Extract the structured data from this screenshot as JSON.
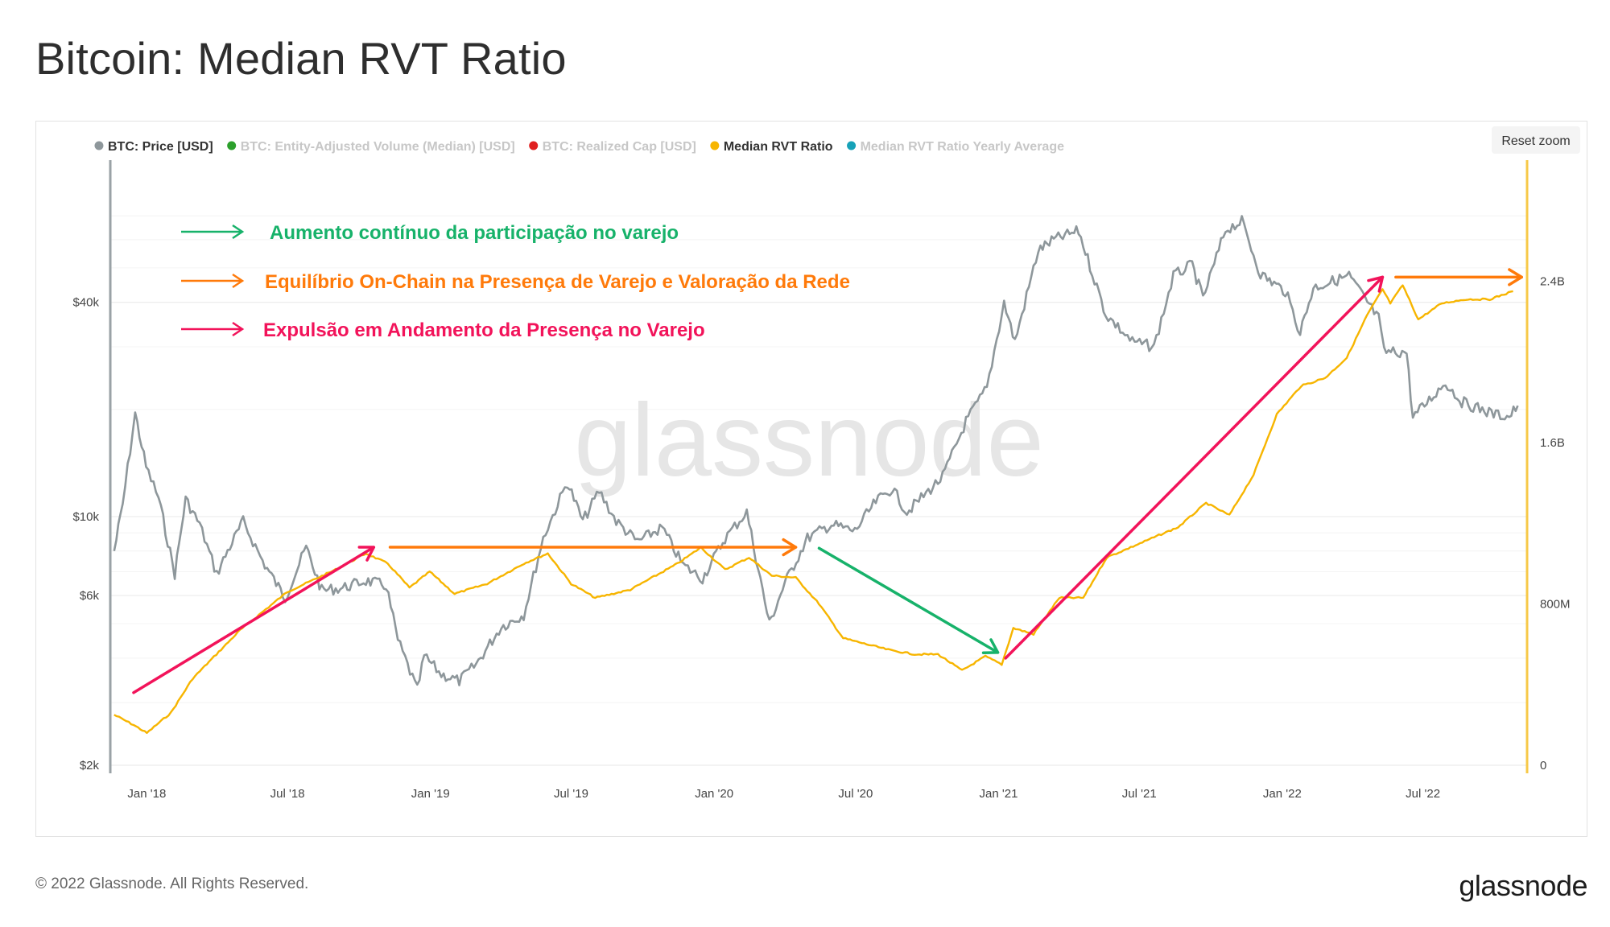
{
  "page": {
    "title": "Bitcoin: Median RVT Ratio",
    "footer_copyright": "© 2022 Glassnode. All Rights Reserved.",
    "footer_logo": "glassnode",
    "watermark": "glassnode"
  },
  "toolbar": {
    "reset_zoom_label": "Reset zoom"
  },
  "legend": [
    {
      "label": "BTC: Price [USD]",
      "color": "#8e979b",
      "active": true
    },
    {
      "label": "BTC: Entity-Adjusted Volume (Median) [USD]",
      "color": "#2ca02c",
      "active": false
    },
    {
      "label": "BTC: Realized Cap [USD]",
      "color": "#e02020",
      "active": false
    },
    {
      "label": "Median RVT Ratio",
      "color": "#f7b500",
      "active": true
    },
    {
      "label": "Median RVT Ratio Yearly Average",
      "color": "#17a2b8",
      "active": false
    }
  ],
  "annotations": {
    "green": {
      "text": "Aumento contínuo da participação no varejo",
      "color": "#17b26a"
    },
    "orange": {
      "text": "Equilíbrio On-Chain na Presença de Varejo e Valoração da Rede",
      "color": "#ff7a0a"
    },
    "pink": {
      "text": "Expulsão em Andamento da Presença no Varejo",
      "color": "#f2135a"
    }
  },
  "chart_data": {
    "type": "line",
    "x_ticks": [
      "Jan '18",
      "Jul '18",
      "Jan '19",
      "Jul '19",
      "Jan '20",
      "Jul '20",
      "Jan '21",
      "Jul '21",
      "Jan '22",
      "Jul '22"
    ],
    "y_left": {
      "scale": "log",
      "ticks": [
        "$2k",
        "$6k",
        "$10k",
        "$40k"
      ],
      "tick_values": [
        2000,
        6000,
        10000,
        40000
      ]
    },
    "y_right": {
      "scale": "linear",
      "ticks": [
        "0",
        "800M",
        "1.6B",
        "2.4B"
      ],
      "tick_values": [
        0,
        800000000,
        1600000000,
        2400000000
      ]
    },
    "series": [
      {
        "name": "BTC: Price [USD]",
        "axis": "left",
        "color": "#8e979b",
        "points": [
          [
            "2017-11-20",
            8000
          ],
          [
            "2017-12-01",
            10800
          ],
          [
            "2017-12-17",
            19500
          ],
          [
            "2017-12-31",
            13800
          ],
          [
            "2018-01-16",
            11300
          ],
          [
            "2018-02-06",
            6900
          ],
          [
            "2018-02-20",
            11200
          ],
          [
            "2018-03-10",
            9500
          ],
          [
            "2018-04-01",
            6900
          ],
          [
            "2018-04-15",
            8000
          ],
          [
            "2018-05-05",
            9700
          ],
          [
            "2018-05-30",
            7500
          ],
          [
            "2018-06-28",
            5900
          ],
          [
            "2018-07-25",
            8200
          ],
          [
            "2018-08-14",
            6200
          ],
          [
            "2018-09-10",
            6300
          ],
          [
            "2018-10-10",
            6600
          ],
          [
            "2018-11-05",
            6400
          ],
          [
            "2018-11-20",
            4500
          ],
          [
            "2018-12-15",
            3250
          ],
          [
            "2018-12-24",
            4050
          ],
          [
            "2019-01-15",
            3600
          ],
          [
            "2019-02-07",
            3450
          ],
          [
            "2019-03-01",
            3850
          ],
          [
            "2019-04-02",
            4900
          ],
          [
            "2019-05-01",
            5300
          ],
          [
            "2019-05-26",
            8700
          ],
          [
            "2019-06-26",
            12500
          ],
          [
            "2019-07-16",
            9700
          ],
          [
            "2019-08-06",
            11800
          ],
          [
            "2019-08-28",
            9700
          ],
          [
            "2019-09-24",
            8500
          ],
          [
            "2019-10-26",
            9300
          ],
          [
            "2019-11-22",
            7300
          ],
          [
            "2019-12-17",
            6700
          ],
          [
            "2020-01-15",
            8700
          ],
          [
            "2020-02-12",
            10300
          ],
          [
            "2020-03-12",
            5000
          ],
          [
            "2020-04-01",
            6500
          ],
          [
            "2020-04-30",
            8700
          ],
          [
            "2020-05-31",
            9500
          ],
          [
            "2020-06-30",
            9100
          ],
          [
            "2020-07-27",
            11000
          ],
          [
            "2020-08-17",
            12000
          ],
          [
            "2020-09-05",
            10300
          ],
          [
            "2020-10-21",
            12900
          ],
          [
            "2020-11-20",
            18500
          ],
          [
            "2020-12-17",
            23000
          ],
          [
            "2021-01-08",
            40000
          ],
          [
            "2021-01-22",
            31000
          ],
          [
            "2021-02-21",
            56000
          ],
          [
            "2021-03-13",
            60000
          ],
          [
            "2021-04-14",
            63500
          ],
          [
            "2021-05-19",
            37000
          ],
          [
            "2021-06-22",
            31000
          ],
          [
            "2021-07-20",
            30000
          ],
          [
            "2021-08-14",
            47500
          ],
          [
            "2021-09-07",
            51000
          ],
          [
            "2021-09-21",
            41000
          ],
          [
            "2021-10-20",
            64000
          ],
          [
            "2021-11-10",
            67500
          ],
          [
            "2021-12-04",
            48000
          ],
          [
            "2022-01-05",
            43000
          ],
          [
            "2022-01-24",
            33000
          ],
          [
            "2022-02-10",
            44000
          ],
          [
            "2022-03-28",
            47500
          ],
          [
            "2022-05-05",
            36000
          ],
          [
            "2022-05-12",
            29000
          ],
          [
            "2022-06-10",
            29000
          ],
          [
            "2022-06-18",
            19000
          ],
          [
            "2022-07-30",
            23800
          ],
          [
            "2022-08-20",
            21000
          ],
          [
            "2022-09-30",
            19400
          ],
          [
            "2022-10-20",
            19100
          ],
          [
            "2022-10-31",
            20500
          ]
        ]
      },
      {
        "name": "Median RVT Ratio",
        "axis": "right",
        "color": "#f7b500",
        "points": [
          [
            "2017-11-20",
            250000000
          ],
          [
            "2017-12-15",
            200000000
          ],
          [
            "2018-01-01",
            160000000
          ],
          [
            "2018-02-01",
            260000000
          ],
          [
            "2018-03-01",
            430000000
          ],
          [
            "2018-05-01",
            670000000
          ],
          [
            "2018-07-01",
            860000000
          ],
          [
            "2018-09-01",
            970000000
          ],
          [
            "2018-10-10",
            1050000000
          ],
          [
            "2018-11-07",
            1000000000
          ],
          [
            "2018-12-05",
            880000000
          ],
          [
            "2018-12-31",
            960000000
          ],
          [
            "2019-02-01",
            850000000
          ],
          [
            "2019-03-15",
            900000000
          ],
          [
            "2019-05-01",
            1000000000
          ],
          [
            "2019-06-01",
            1050000000
          ],
          [
            "2019-07-01",
            900000000
          ],
          [
            "2019-08-01",
            830000000
          ],
          [
            "2019-09-15",
            870000000
          ],
          [
            "2019-11-15",
            1000000000
          ],
          [
            "2019-12-15",
            1080000000
          ],
          [
            "2020-01-15",
            970000000
          ],
          [
            "2020-02-15",
            1030000000
          ],
          [
            "2020-03-15",
            940000000
          ],
          [
            "2020-04-15",
            930000000
          ],
          [
            "2020-05-15",
            800000000
          ],
          [
            "2020-06-15",
            630000000
          ],
          [
            "2020-07-15",
            600000000
          ],
          [
            "2020-08-15",
            570000000
          ],
          [
            "2020-09-15",
            550000000
          ],
          [
            "2020-10-15",
            550000000
          ],
          [
            "2020-11-15",
            470000000
          ],
          [
            "2020-12-15",
            540000000
          ],
          [
            "2021-01-05",
            500000000
          ],
          [
            "2021-01-20",
            680000000
          ],
          [
            "2021-02-15",
            650000000
          ],
          [
            "2021-03-20",
            830000000
          ],
          [
            "2021-04-20",
            830000000
          ],
          [
            "2021-05-20",
            1030000000
          ],
          [
            "2021-06-20",
            1080000000
          ],
          [
            "2021-07-20",
            1130000000
          ],
          [
            "2021-08-20",
            1180000000
          ],
          [
            "2021-09-25",
            1300000000
          ],
          [
            "2021-10-25",
            1240000000
          ],
          [
            "2021-11-25",
            1440000000
          ],
          [
            "2021-12-25",
            1740000000
          ],
          [
            "2022-01-25",
            1880000000
          ],
          [
            "2022-02-25",
            1920000000
          ],
          [
            "2022-03-25",
            2020000000
          ],
          [
            "2022-04-20",
            2230000000
          ],
          [
            "2022-05-10",
            2360000000
          ],
          [
            "2022-05-20",
            2290000000
          ],
          [
            "2022-06-05",
            2380000000
          ],
          [
            "2022-06-25",
            2210000000
          ],
          [
            "2022-07-25",
            2290000000
          ],
          [
            "2022-08-25",
            2310000000
          ],
          [
            "2022-09-25",
            2310000000
          ],
          [
            "2022-10-25",
            2350000000
          ]
        ]
      }
    ],
    "arrows": [
      {
        "color": "pink",
        "from": [
          "2017-12-15",
          3200
        ],
        "to": [
          "2018-10-20",
          8200
        ]
      },
      {
        "color": "orange",
        "from": [
          "2018-11-10",
          8200
        ],
        "to": [
          "2020-04-15",
          8200
        ]
      },
      {
        "color": "green",
        "from": [
          "2020-05-15",
          8150
        ],
        "to": [
          "2020-12-31",
          4150
        ]
      },
      {
        "color": "pink",
        "from": [
          "2021-01-10",
          4000
        ],
        "to": [
          "2022-05-10",
          2420000000
        ]
      },
      {
        "color": "orange",
        "from": [
          "2022-05-27",
          2420000000
        ],
        "to": [
          "2022-11-05",
          2420000000
        ]
      }
    ]
  }
}
